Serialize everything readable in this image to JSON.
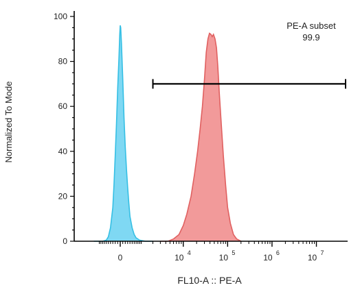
{
  "chart_data": {
    "type": "area",
    "title": "",
    "xlabel": "FL10-A :: PE-A",
    "ylabel": "Normalized To Mode",
    "x_scale": "biexponential",
    "ylim": [
      0,
      100
    ],
    "y_ticks": [
      {
        "value": 0,
        "label": "0"
      },
      {
        "value": 20,
        "label": "20"
      },
      {
        "value": 40,
        "label": "40"
      },
      {
        "value": 60,
        "label": "60"
      },
      {
        "value": 80,
        "label": "80"
      },
      {
        "value": 100,
        "label": "100"
      }
    ],
    "x_ticks": [
      {
        "value": 0,
        "label": "0"
      },
      {
        "value": 10000,
        "base": "10",
        "exp": "4"
      },
      {
        "value": 100000,
        "base": "10",
        "exp": "5"
      },
      {
        "value": 1000000,
        "base": "10",
        "exp": "6"
      },
      {
        "value": 10000000,
        "base": "10",
        "exp": "7"
      }
    ],
    "series": [
      {
        "color": "#35bfe4",
        "fill": "#7fd8f3",
        "points": [
          [
            -1400,
            0
          ],
          [
            -800,
            0
          ],
          [
            -600,
            0.5
          ],
          [
            -500,
            2
          ],
          [
            -400,
            6
          ],
          [
            -300,
            15
          ],
          [
            -250,
            25
          ],
          [
            -200,
            38
          ],
          [
            -150,
            52
          ],
          [
            -100,
            68
          ],
          [
            -50,
            82
          ],
          [
            -20,
            92
          ],
          [
            0,
            96
          ],
          [
            20,
            95
          ],
          [
            50,
            88
          ],
          [
            100,
            72
          ],
          [
            150,
            55
          ],
          [
            200,
            42
          ],
          [
            250,
            32
          ],
          [
            300,
            24
          ],
          [
            350,
            17
          ],
          [
            400,
            11
          ],
          [
            500,
            6
          ],
          [
            600,
            3
          ],
          [
            700,
            1.5
          ],
          [
            900,
            0.5
          ],
          [
            1300,
            0
          ],
          [
            2000,
            0
          ]
        ]
      },
      {
        "color": "#e06060",
        "fill": "#f29a9a",
        "points": [
          [
            3000,
            0
          ],
          [
            4500,
            0
          ],
          [
            6000,
            1
          ],
          [
            8000,
            3
          ],
          [
            10000,
            7
          ],
          [
            12000,
            12
          ],
          [
            15000,
            20
          ],
          [
            18000,
            30
          ],
          [
            21000,
            40
          ],
          [
            24000,
            50
          ],
          [
            27000,
            60
          ],
          [
            30000,
            72
          ],
          [
            33000,
            84
          ],
          [
            36000,
            90
          ],
          [
            39000,
            92.5
          ],
          [
            42000,
            92
          ],
          [
            45000,
            91
          ],
          [
            48000,
            92
          ],
          [
            52000,
            90
          ],
          [
            56000,
            86
          ],
          [
            60000,
            78
          ],
          [
            65000,
            66
          ],
          [
            72000,
            52
          ],
          [
            80000,
            38
          ],
          [
            90000,
            25
          ],
          [
            100000,
            15
          ],
          [
            115000,
            8
          ],
          [
            135000,
            3
          ],
          [
            160000,
            1
          ],
          [
            200000,
            0
          ]
        ]
      }
    ],
    "gate": {
      "name": "PE-A subset",
      "value": "99.9",
      "range": [
        2000,
        10000000
      ],
      "y": 70
    }
  }
}
